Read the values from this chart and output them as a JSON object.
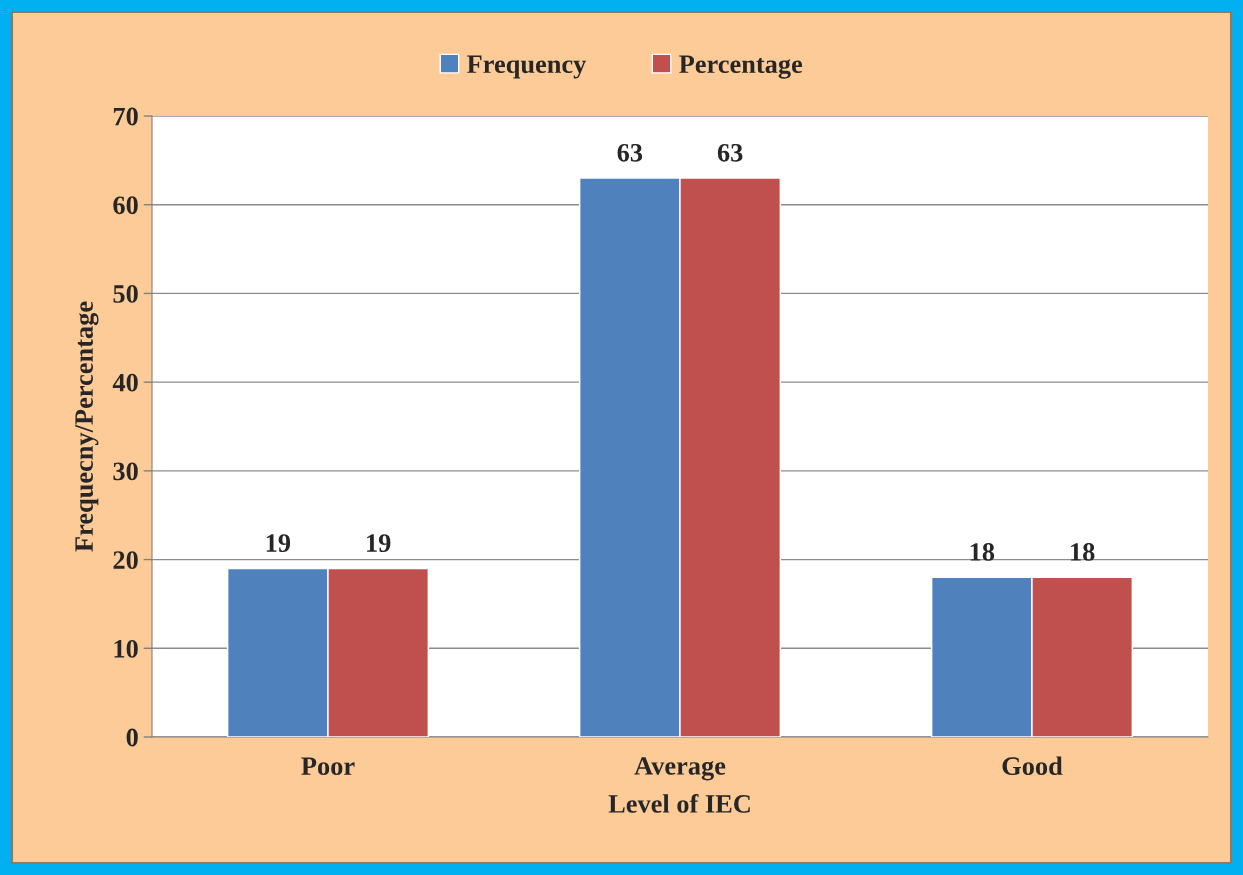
{
  "chart_data": {
    "type": "bar",
    "categories": [
      "Poor",
      "Average",
      "Good"
    ],
    "series": [
      {
        "name": "Frequency",
        "color": "#4f81bd",
        "values": [
          19,
          63,
          18
        ]
      },
      {
        "name": "Percentage",
        "color": "#c0504d",
        "values": [
          19,
          63,
          18
        ]
      }
    ],
    "xlabel": "Level of IEC",
    "ylabel": "Frequecny/Percentage",
    "ylim": [
      0,
      70
    ],
    "yticks": [
      0,
      10,
      20,
      30,
      40,
      50,
      60,
      70
    ],
    "grid": "y",
    "legend": "top",
    "data_labels": true
  }
}
